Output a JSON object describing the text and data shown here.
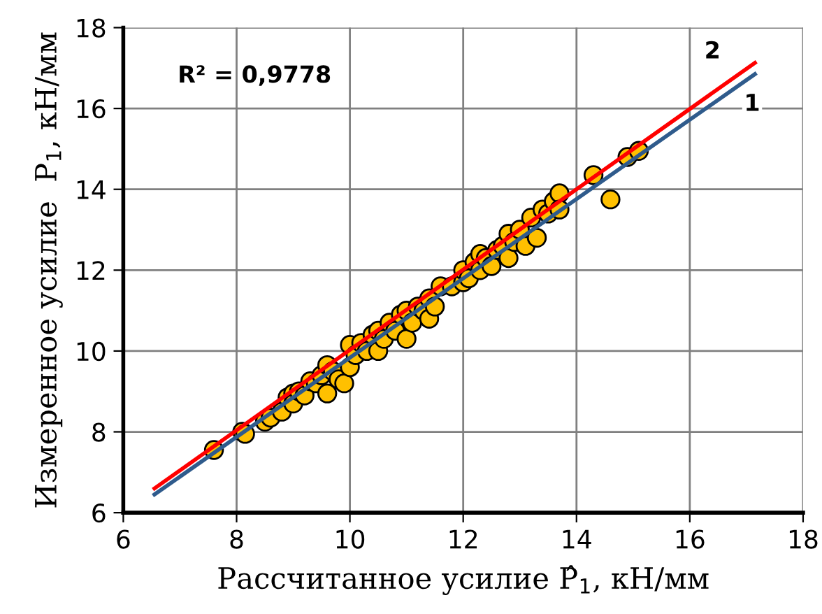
{
  "chart_data": {
    "type": "scatter",
    "xlabel": "Рассчитанное усилие P̂$_{1}$, кН/мм",
    "ylabel": "Измеренное усилие  P$_{1}$, кН/мм",
    "xlim": [
      6,
      18
    ],
    "ylim": [
      6,
      18
    ],
    "xticks": [
      6,
      8,
      10,
      12,
      14,
      16,
      18
    ],
    "yticks": [
      6,
      8,
      10,
      12,
      14,
      16,
      18
    ],
    "grid": true,
    "marker": "circle",
    "annotations": [
      "R² = 0,9778",
      {
        "text": "1",
        "x": 17.1,
        "y": 16.1
      },
      {
        "text": "2",
        "x": 16.4,
        "y": 17.4
      }
    ],
    "series": [
      {
        "color": "#ffc000",
        "x": [
          7.6,
          8.1,
          8.15,
          8.5,
          8.6,
          8.8,
          8.9,
          9.0,
          9.0,
          9.1,
          9.2,
          9.3,
          9.4,
          9.5,
          9.6,
          9.6,
          9.7,
          9.8,
          9.9,
          10.0,
          10.0,
          10.1,
          10.2,
          10.3,
          10.4,
          10.5,
          10.5,
          10.6,
          10.7,
          10.8,
          10.9,
          11.0,
          11.0,
          11.1,
          11.2,
          11.3,
          11.4,
          11.4,
          11.5,
          11.6,
          11.8,
          12.0,
          12.0,
          12.1,
          12.2,
          12.3,
          12.3,
          12.4,
          12.5,
          12.6,
          12.7,
          12.8,
          12.8,
          12.9,
          13.0,
          13.1,
          13.2,
          13.3,
          13.4,
          13.5,
          13.6,
          13.7,
          13.7,
          14.3,
          14.6,
          14.9,
          15.1
        ],
        "values": [
          7.55,
          8.0,
          7.95,
          8.25,
          8.35,
          8.5,
          8.85,
          8.95,
          8.7,
          9.0,
          8.9,
          9.25,
          9.2,
          9.4,
          8.95,
          9.65,
          9.5,
          9.3,
          9.2,
          10.15,
          9.6,
          9.9,
          10.2,
          10.0,
          10.4,
          10.5,
          10.0,
          10.3,
          10.7,
          10.5,
          10.9,
          10.3,
          11.0,
          10.7,
          11.1,
          11.0,
          10.8,
          11.3,
          11.1,
          11.6,
          11.6,
          11.7,
          12.0,
          11.8,
          12.2,
          12.4,
          12.0,
          12.3,
          12.1,
          12.5,
          12.6,
          12.9,
          12.3,
          12.7,
          13.0,
          12.6,
          13.3,
          12.8,
          13.5,
          13.4,
          13.7,
          13.9,
          13.5,
          14.35,
          13.75,
          14.8,
          14.95
        ]
      },
      {
        "type": "line",
        "color": "#2f5b8c",
        "x": [
          6.55,
          17.15
        ],
        "values": [
          6.45,
          16.85
        ],
        "marker": "none",
        "line_style": "solid"
      },
      {
        "type": "line",
        "color": "#ff0000",
        "x": [
          6.55,
          17.15
        ],
        "values": [
          6.6,
          17.13
        ],
        "marker": "none",
        "line_style": "solid"
      }
    ]
  }
}
